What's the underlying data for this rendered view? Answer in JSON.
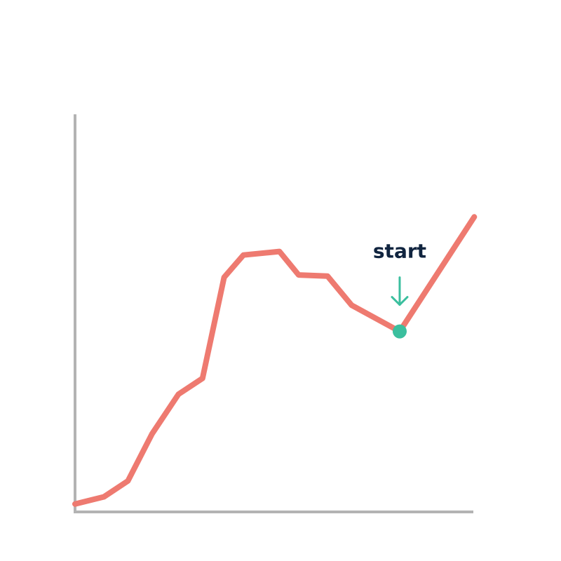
{
  "chart_data": {
    "type": "line",
    "title": "",
    "xlabel": "",
    "ylabel": "",
    "grid": false,
    "legend": "none",
    "xlim": [
      0,
      17
    ],
    "ylim": [
      0,
      100
    ],
    "series": [
      {
        "x": [
          0,
          1.2,
          2.2,
          3.2,
          4.3,
          5.3,
          6.2,
          7.0,
          8.5,
          9.3,
          10.5,
          11.5,
          13.5,
          16.6
        ],
        "y": [
          2,
          3.8,
          7.8,
          19.6,
          29.6,
          33.6,
          59,
          64.6,
          65.5,
          59.6,
          59.3,
          52,
          45.4,
          74.2
        ]
      }
    ],
    "annotation": {
      "text": "start",
      "x": 13.5,
      "y": 45.4
    },
    "colors": {
      "line": "#ee7a70",
      "marker": "#3bbf9e",
      "axis": "#b3b3b3",
      "text": "#10243f"
    }
  }
}
